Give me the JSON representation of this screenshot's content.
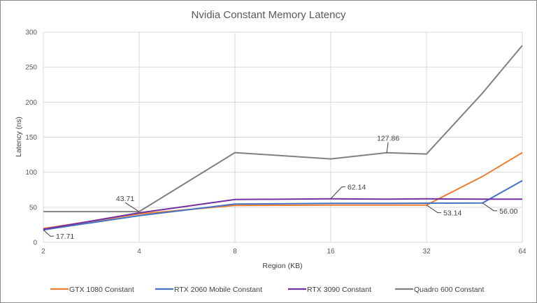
{
  "chart_data": {
    "type": "line",
    "title": "Nvidia Constant Memory Latency",
    "xlabel": "Region (KB)",
    "ylabel": "Latency (ns)",
    "x_scale": "log2",
    "x_ticks": [
      "2",
      "4",
      "8",
      "16",
      "32",
      "64"
    ],
    "x": [
      2,
      4,
      8,
      16,
      24,
      32,
      48,
      64
    ],
    "y_ticks": [
      "0",
      "50",
      "100",
      "150",
      "200",
      "250",
      "300"
    ],
    "ylim": [
      0,
      300
    ],
    "grid": true,
    "legend_position": "bottom",
    "series": [
      {
        "name": "GTX 1080 Constant",
        "color": "#ED7D31",
        "values": [
          19.5,
          40.5,
          52.5,
          53.0,
          53.0,
          53.14,
          94.0,
          128.0
        ]
      },
      {
        "name": "RTX 2060 Mobile Constant",
        "color": "#4472C4",
        "values": [
          17.71,
          38.0,
          54.5,
          55.5,
          55.5,
          55.8,
          56.0,
          88.0
        ]
      },
      {
        "name": "RTX 3090 Constant",
        "color": "#7030A0",
        "values": [
          18.5,
          42.0,
          61.0,
          62.14,
          61.5,
          62.0,
          61.5,
          61.5
        ]
      },
      {
        "name": "Quadro 600 Constant",
        "color": "#808080",
        "values": [
          43.71,
          43.71,
          128.0,
          119.0,
          127.86,
          126.0,
          213.0,
          281.0
        ]
      }
    ],
    "annotations": [
      {
        "text": "17.71",
        "series": "RTX 2060 Mobile Constant",
        "x": 2
      },
      {
        "text": "43.71",
        "series": "Quadro 600 Constant",
        "x": 4
      },
      {
        "text": "62.14",
        "series": "RTX 3090 Constant",
        "x": 16
      },
      {
        "text": "127.86",
        "series": "Quadro 600 Constant",
        "x": 24
      },
      {
        "text": "53.14",
        "series": "GTX 1080 Constant",
        "x": 32
      },
      {
        "text": "56.00",
        "series": "RTX 2060 Mobile Constant",
        "x": 48
      }
    ]
  }
}
